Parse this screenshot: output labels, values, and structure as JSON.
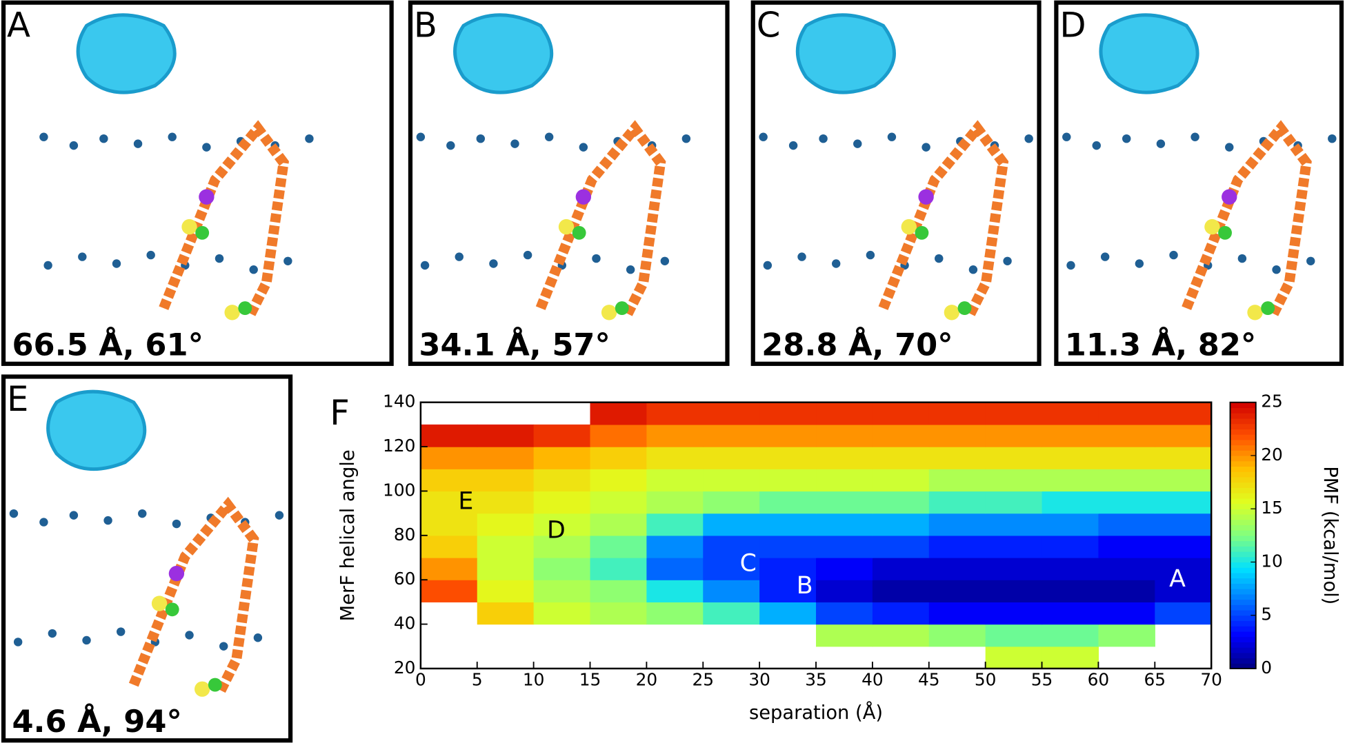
{
  "panels": [
    {
      "letter": "A",
      "caption": "66.5 Å, 61°"
    },
    {
      "letter": "B",
      "caption": "34.1 Å, 57°"
    },
    {
      "letter": "C",
      "caption": "28.8 Å, 70°"
    },
    {
      "letter": "D",
      "caption": "11.3 Å, 82°"
    },
    {
      "letter": "E",
      "caption": "4.6 Å, 94°"
    }
  ],
  "chart_data": {
    "type": "heatmap",
    "panel_label": "F",
    "xlabel": "separation (Å)",
    "ylabel": "MerF helical angle",
    "xlim": [
      0,
      70
    ],
    "ylim": [
      20,
      140
    ],
    "xticks": [
      0,
      5,
      10,
      15,
      20,
      25,
      30,
      35,
      40,
      45,
      50,
      55,
      60,
      65,
      70
    ],
    "yticks": [
      20,
      40,
      60,
      80,
      100,
      120,
      140
    ],
    "xbins": [
      0,
      5,
      10,
      15,
      20,
      25,
      30,
      35,
      40,
      45,
      50,
      55,
      60,
      65,
      70
    ],
    "ybins": [
      20,
      30,
      40,
      50,
      60,
      70,
      80,
      90,
      100,
      110,
      120,
      130,
      140
    ],
    "z": [
      [
        null,
        null,
        null,
        null,
        null,
        null,
        null,
        null,
        null,
        null,
        15,
        15,
        null,
        null
      ],
      [
        null,
        null,
        null,
        null,
        null,
        null,
        null,
        14,
        14,
        13,
        12,
        12,
        13,
        null
      ],
      [
        null,
        18,
        15,
        14,
        13,
        11,
        8,
        5,
        4,
        3,
        3,
        3,
        3,
        5
      ],
      [
        22,
        16,
        14,
        13,
        10,
        7,
        4,
        2,
        1,
        1,
        1,
        1,
        1,
        2
      ],
      [
        20,
        15,
        13,
        11,
        6,
        5,
        4,
        3,
        2,
        2,
        2,
        2,
        2,
        2
      ],
      [
        18,
        15,
        14,
        12,
        7,
        5,
        5,
        5,
        5,
        4,
        4,
        4,
        3,
        3
      ],
      [
        17,
        16,
        15,
        14,
        11,
        8,
        8,
        8,
        8,
        7,
        7,
        7,
        6,
        6
      ],
      [
        17,
        17,
        16,
        15,
        14,
        13,
        12,
        12,
        12,
        11,
        11,
        10,
        10,
        10
      ],
      [
        18,
        18,
        17,
        16,
        15,
        15,
        15,
        15,
        15,
        14,
        14,
        14,
        14,
        14
      ],
      [
        20,
        20,
        19,
        18,
        17,
        17,
        17,
        17,
        17,
        17,
        17,
        17,
        17,
        17
      ],
      [
        24,
        24,
        23,
        21,
        20,
        20,
        20,
        20,
        20,
        20,
        20,
        20,
        20,
        20
      ],
      [
        null,
        null,
        null,
        24,
        23,
        23,
        23,
        23,
        23,
        23,
        23,
        23,
        23,
        23
      ]
    ],
    "colorbar": {
      "label": "PMF (kcal/mol)",
      "lim": [
        0,
        25
      ],
      "ticks": [
        0,
        5,
        10,
        15,
        20,
        25
      ],
      "colors": [
        "#00007f",
        "#0000ff",
        "#0070ff",
        "#00e0ff",
        "#80ff80",
        "#e0ff20",
        "#ffc000",
        "#ff5000",
        "#d00000"
      ]
    },
    "annotations": [
      {
        "text": "E",
        "x": 4,
        "y": 95,
        "color": "#000000"
      },
      {
        "text": "D",
        "x": 12,
        "y": 82,
        "color": "#000000"
      },
      {
        "text": "C",
        "x": 29,
        "y": 67,
        "color": "#ffffff"
      },
      {
        "text": "B",
        "x": 34,
        "y": 57,
        "color": "#ffffff"
      },
      {
        "text": "A",
        "x": 67,
        "y": 60,
        "color": "#ffffff"
      }
    ]
  }
}
